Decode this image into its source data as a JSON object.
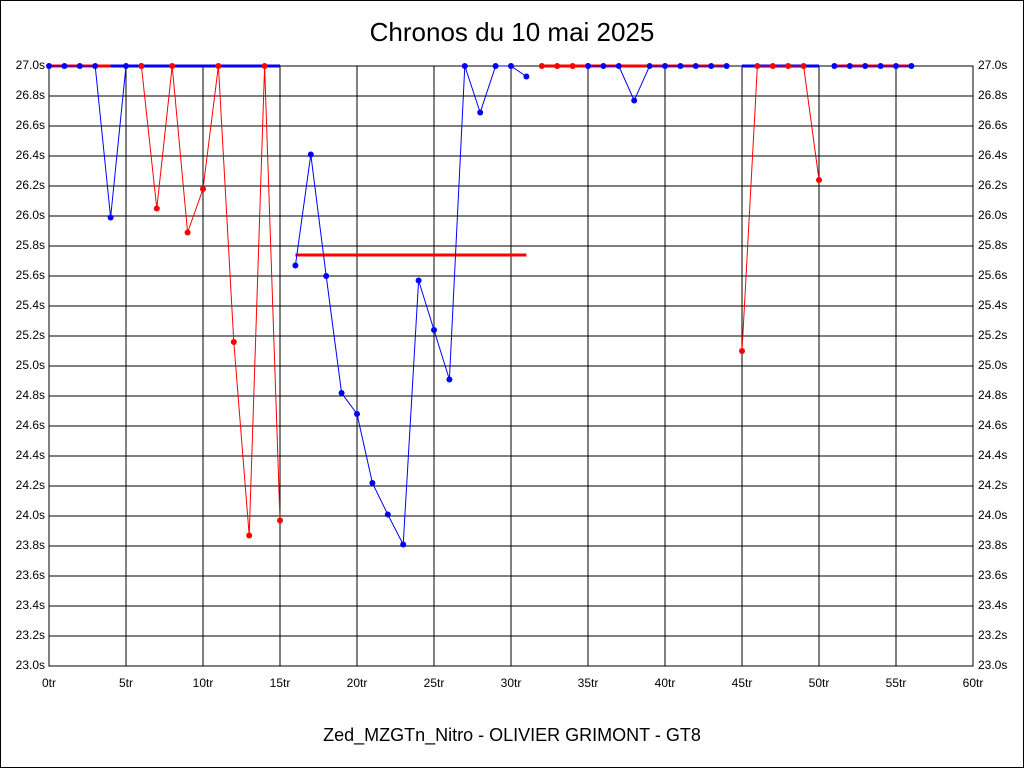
{
  "chart_data": {
    "type": "line",
    "title": "Chronos du 10 mai 2025",
    "x_label": "Zed_MZGTn_Nitro - OLIVIER GRIMONT - GT8",
    "xlim": [
      0,
      60
    ],
    "xticks": [
      {
        "value": 0,
        "label": "0tr"
      },
      {
        "value": 5,
        "label": "5tr"
      },
      {
        "value": 10,
        "label": "10tr"
      },
      {
        "value": 15,
        "label": "15tr"
      },
      {
        "value": 20,
        "label": "20tr"
      },
      {
        "value": 25,
        "label": "25tr"
      },
      {
        "value": 30,
        "label": "30tr"
      },
      {
        "value": 35,
        "label": "35tr"
      },
      {
        "value": 40,
        "label": "40tr"
      },
      {
        "value": 45,
        "label": "45tr"
      },
      {
        "value": 50,
        "label": "50tr"
      },
      {
        "value": 55,
        "label": "55tr"
      },
      {
        "value": 60,
        "label": "60tr"
      }
    ],
    "ylim": [
      23.0,
      27.0
    ],
    "yticks": [
      {
        "value": 23.0,
        "label": "23.0s"
      },
      {
        "value": 23.2,
        "label": "23.2s"
      },
      {
        "value": 23.4,
        "label": "23.4s"
      },
      {
        "value": 23.6,
        "label": "23.6s"
      },
      {
        "value": 23.8,
        "label": "23.8s"
      },
      {
        "value": 24.0,
        "label": "24.0s"
      },
      {
        "value": 24.2,
        "label": "24.2s"
      },
      {
        "value": 24.4,
        "label": "24.4s"
      },
      {
        "value": 24.6,
        "label": "24.6s"
      },
      {
        "value": 24.8,
        "label": "24.8s"
      },
      {
        "value": 25.0,
        "label": "25.0s"
      },
      {
        "value": 25.2,
        "label": "25.2s"
      },
      {
        "value": 25.4,
        "label": "25.4s"
      },
      {
        "value": 25.6,
        "label": "25.6s"
      },
      {
        "value": 25.8,
        "label": "25.8s"
      },
      {
        "value": 26.0,
        "label": "26.0s"
      },
      {
        "value": 26.2,
        "label": "26.2s"
      },
      {
        "value": 26.4,
        "label": "26.4s"
      },
      {
        "value": 26.6,
        "label": "26.6s"
      },
      {
        "value": 26.8,
        "label": "26.8s"
      },
      {
        "value": 27.0,
        "label": "27.0s"
      }
    ],
    "grid": true,
    "series": [
      {
        "color": "#0000ff",
        "x": [
          0,
          1,
          2,
          3,
          4,
          5,
          6
        ],
        "values": [
          27,
          27,
          27,
          27,
          25.99,
          27,
          27
        ]
      },
      {
        "color": "#ff0000",
        "x": [
          6,
          7,
          8,
          9,
          10,
          11,
          12,
          13,
          14,
          15
        ],
        "values": [
          27,
          26.05,
          27,
          25.89,
          26.18,
          27,
          25.16,
          23.87,
          27,
          23.97
        ]
      },
      {
        "color": "#0000ff",
        "x": [
          16,
          17,
          18,
          19,
          20,
          21,
          22,
          23,
          24,
          25,
          26,
          27,
          28,
          29,
          30,
          31
        ],
        "values": [
          25.67,
          26.41,
          25.6,
          24.82,
          24.68,
          24.22,
          24.01,
          23.81,
          25.57,
          25.24,
          24.91,
          27,
          26.69,
          27,
          27,
          26.93
        ]
      },
      {
        "color": "#ff0000",
        "x": [
          32,
          33,
          34,
          35
        ],
        "values": [
          27,
          27,
          27,
          27
        ]
      },
      {
        "color": "#0000ff",
        "x": [
          35,
          36,
          37,
          38,
          39,
          40,
          41,
          42,
          43,
          44
        ],
        "values": [
          27,
          27,
          27,
          26.77,
          27,
          27,
          27,
          27,
          27,
          27
        ]
      },
      {
        "color": "#ff0000",
        "x": [
          45,
          46,
          47,
          48,
          49,
          50
        ],
        "values": [
          25.1,
          27,
          27,
          27,
          27,
          26.24
        ]
      },
      {
        "color": "#0000ff",
        "x": [
          51,
          52,
          53,
          54,
          55,
          56
        ],
        "values": [
          27,
          27,
          27,
          27,
          27,
          27
        ]
      }
    ],
    "reference_lines": [
      {
        "color": "#ff0000",
        "x": [
          0,
          4
        ],
        "value": 27
      },
      {
        "color": "#0000ff",
        "x": [
          4,
          15
        ],
        "value": 27
      },
      {
        "color": "#ff0000",
        "x": [
          16,
          31
        ],
        "value": 25.74
      },
      {
        "color": "#ff0000",
        "x": [
          32,
          44
        ],
        "value": 27
      },
      {
        "color": "#0000ff",
        "x": [
          45,
          50
        ],
        "value": 27
      },
      {
        "color": "#ff0000",
        "x": [
          51,
          56
        ],
        "value": 27
      }
    ]
  }
}
